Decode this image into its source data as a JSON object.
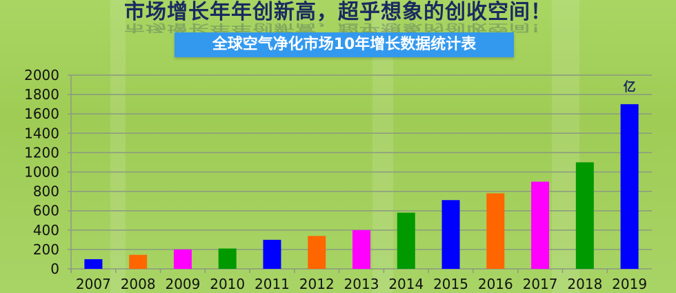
{
  "header": {
    "title": "市场增长年年创新高，超乎想象的创收空间！",
    "subtitle": "全球空气净化市场10年增长数据统计表"
  },
  "chart_data": {
    "type": "bar",
    "title": "全球空气净化市场10年增长数据统计表",
    "unit_label": "亿",
    "categories": [
      "2007",
      "2008",
      "2009",
      "2010",
      "2011",
      "2012",
      "2013",
      "2014",
      "2015",
      "2016",
      "2017",
      "2018",
      "2019"
    ],
    "values": [
      100,
      145,
      200,
      210,
      300,
      340,
      400,
      580,
      710,
      780,
      900,
      1100,
      1700
    ],
    "colors": [
      "#0000ff",
      "#ff6600",
      "#ff00ff",
      "#009900",
      "#0000ff",
      "#ff6600",
      "#ff00ff",
      "#009900",
      "#0000ff",
      "#ff6600",
      "#ff00ff",
      "#009900",
      "#0000ff"
    ],
    "yticks": [
      "0",
      "200",
      "400",
      "600",
      "800",
      "1000",
      "1200",
      "1400",
      "1600",
      "1800",
      "2000"
    ],
    "ylim": [
      0,
      2000
    ],
    "grid": true,
    "xlabel": "",
    "ylabel": ""
  }
}
